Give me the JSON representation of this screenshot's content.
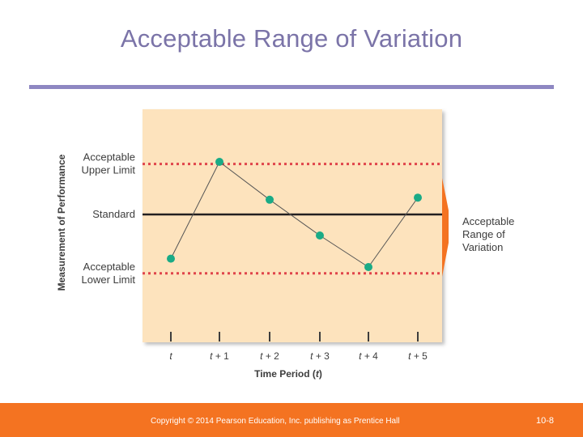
{
  "slide": {
    "title": "Acceptable Range of Variation",
    "footer_copyright": "Copyright © 2014 Pearson Education, Inc. publishing as Prentice Hall",
    "page_number": "10-8"
  },
  "colors": {
    "title": "#7b74a8",
    "rule": "#8e87c2",
    "panel": "#fde3bd",
    "limit_dots": "#e0454b",
    "standard_line": "#231f20",
    "markers": "#1aab86",
    "bracket": "#f47321",
    "footer": "#f47321"
  },
  "chart_data": {
    "type": "line",
    "xlabel": "Time Period (t)",
    "ylabel": "Measurement of Performance",
    "ylim": [
      0,
      100
    ],
    "categories": [
      "t",
      "t + 1",
      "t + 2",
      "t + 3",
      "t + 4",
      "t + 5"
    ],
    "values": [
      34,
      80,
      62,
      45,
      30,
      63
    ],
    "reference_lines": [
      {
        "label": "Acceptable Upper Limit",
        "value": 79,
        "style": "dotted"
      },
      {
        "label": "Standard",
        "value": 55,
        "style": "solid"
      },
      {
        "label": "Acceptable Lower Limit",
        "value": 27,
        "style": "dotted"
      }
    ],
    "annotation": "Acceptable Range of Variation"
  }
}
